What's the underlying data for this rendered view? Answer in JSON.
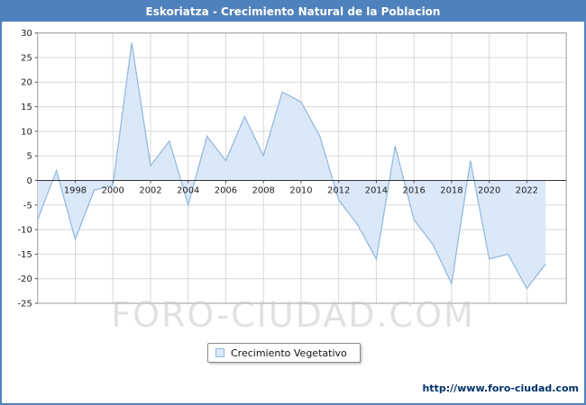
{
  "page": {
    "title": "Eskoriatza - Crecimiento Natural de la Poblacion",
    "watermark": "FORO-CIUDAD.COM",
    "footer_url": "http://www.foro-ciudad.com"
  },
  "legend": {
    "label": "Crecimiento Vegetativo"
  },
  "chart_data": {
    "type": "area",
    "title": "Eskoriatza - Crecimiento Natural de la Poblacion",
    "x": [
      1996,
      1997,
      1998,
      1999,
      2000,
      2001,
      2002,
      2003,
      2004,
      2005,
      2006,
      2007,
      2008,
      2009,
      2010,
      2011,
      2012,
      2013,
      2014,
      2015,
      2016,
      2017,
      2018,
      2019,
      2020,
      2021,
      2022,
      2023
    ],
    "series": [
      {
        "name": "Crecimiento Vegetativo",
        "values": [
          -8,
          2,
          -12,
          -2,
          -1,
          28,
          3,
          8,
          -5,
          9,
          4,
          13,
          5,
          18,
          16,
          9,
          -4,
          -9,
          -16,
          7,
          -8,
          -13,
          -21,
          4,
          -16,
          -15,
          -22,
          -17
        ]
      }
    ],
    "ylim": [
      -25,
      30
    ],
    "ytick_step": 5,
    "xticks": [
      1998,
      2000,
      2002,
      2004,
      2006,
      2008,
      2010,
      2012,
      2014,
      2016,
      2018,
      2020,
      2022
    ],
    "grid": true,
    "legend_position": "bottom",
    "colors": {
      "title_bar": "#4f81bc",
      "page_border": "#4f81bc",
      "area_fill": "#dbe8f7",
      "line": "#94bbdf",
      "grid": "#d8d8d8",
      "plot_border": "#9a9a9a",
      "zero_line": "#333333",
      "tick": "#555555",
      "label": "#222222"
    }
  }
}
